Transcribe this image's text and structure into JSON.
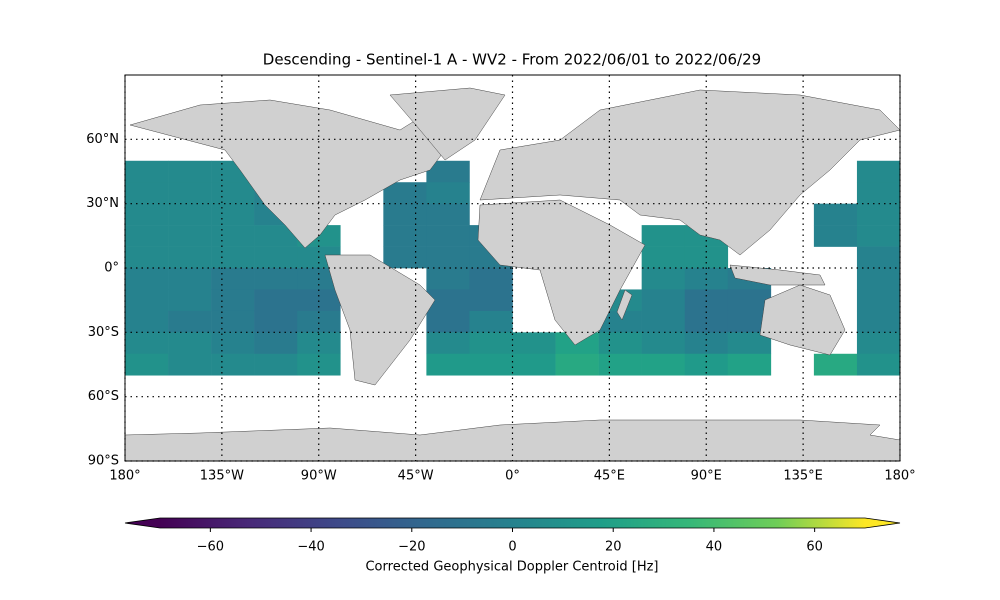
{
  "chart_data": {
    "type": "heatmap-map",
    "title": "Descending - Sentinel-1 A - WV2 - From 2022/06/01 to 2022/06/29",
    "xlim": [
      -180,
      180
    ],
    "ylim": [
      -90,
      90
    ],
    "xticks": [
      {
        "value": -180,
        "label": "180°"
      },
      {
        "value": -135,
        "label": "135°W"
      },
      {
        "value": -90,
        "label": "90°W"
      },
      {
        "value": -45,
        "label": "45°W"
      },
      {
        "value": 0,
        "label": "0°"
      },
      {
        "value": 45,
        "label": "45°E"
      },
      {
        "value": 90,
        "label": "90°E"
      },
      {
        "value": 135,
        "label": "135°E"
      },
      {
        "value": 180,
        "label": "180°"
      }
    ],
    "yticks": [
      {
        "value": -90,
        "label": "90°S"
      },
      {
        "value": -60,
        "label": "60°S"
      },
      {
        "value": -30,
        "label": "30°S"
      },
      {
        "value": 0,
        "label": "0°"
      },
      {
        "value": 30,
        "label": "30°N"
      },
      {
        "value": 60,
        "label": "60°N"
      }
    ],
    "grid": true,
    "cell_lons": [
      -180,
      -160,
      -140,
      -120,
      -100,
      -80,
      -60,
      -40,
      -20,
      0,
      20,
      40,
      60,
      80,
      100,
      120,
      140,
      160,
      180
    ],
    "cell_lats": [
      50,
      40,
      30,
      20,
      10,
      0,
      -10,
      -20,
      -30,
      -40,
      -50
    ],
    "values": [
      [
        5,
        5,
        5,
        null,
        null,
        null,
        null,
        -5,
        null,
        null,
        null,
        null,
        null,
        null,
        null,
        null,
        null,
        5
      ],
      [
        5,
        5,
        5,
        0,
        null,
        null,
        -5,
        0,
        null,
        null,
        null,
        null,
        null,
        null,
        null,
        null,
        null,
        5
      ],
      [
        5,
        5,
        5,
        0,
        null,
        null,
        -5,
        -5,
        null,
        null,
        null,
        null,
        null,
        null,
        null,
        null,
        0,
        5
      ],
      [
        5,
        5,
        5,
        5,
        10,
        null,
        -5,
        -5,
        -5,
        null,
        null,
        null,
        10,
        10,
        null,
        null,
        0,
        5
      ],
      [
        5,
        5,
        5,
        5,
        5,
        null,
        -5,
        -5,
        -5,
        null,
        null,
        null,
        10,
        10,
        null,
        null,
        null,
        0
      ],
      [
        0,
        0,
        -5,
        -5,
        -5,
        null,
        null,
        -5,
        -10,
        null,
        null,
        null,
        5,
        0,
        -5,
        null,
        null,
        0
      ],
      [
        0,
        0,
        -5,
        -10,
        -10,
        null,
        null,
        -10,
        -10,
        null,
        null,
        5,
        0,
        -10,
        -10,
        null,
        null,
        0
      ],
      [
        0,
        -5,
        -5,
        -10,
        -5,
        null,
        null,
        -10,
        0,
        null,
        null,
        0,
        0,
        -10,
        -10,
        null,
        null,
        0
      ],
      [
        5,
        5,
        0,
        -5,
        5,
        null,
        null,
        5,
        10,
        10,
        20,
        10,
        5,
        0,
        5,
        null,
        null,
        5
      ],
      [
        10,
        5,
        5,
        5,
        10,
        null,
        null,
        15,
        15,
        15,
        25,
        20,
        20,
        15,
        20,
        null,
        25,
        10
      ]
    ],
    "colormap": "viridis",
    "colorbar": {
      "label": "Corrected Geophysical Doppler Centroid [Hz]",
      "lim": [
        -70,
        70
      ],
      "ticks": [
        -60,
        -40,
        -20,
        0,
        20,
        40,
        60
      ]
    }
  }
}
